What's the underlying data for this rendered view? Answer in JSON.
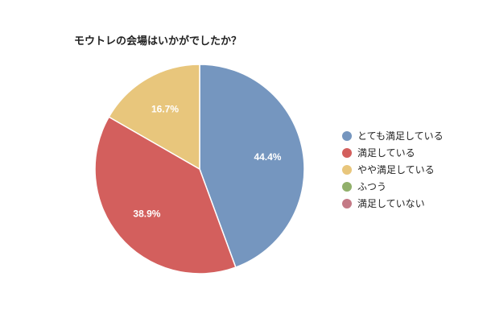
{
  "chart_data": {
    "type": "pie",
    "title": "モウトレの会場はいかがでしたか？",
    "legend_position": "right",
    "slices": [
      {
        "label": "とても満足している",
        "value": 44.4,
        "display": "44.4%",
        "color": "#7596bf"
      },
      {
        "label": "満足している",
        "value": 38.9,
        "display": "38.9%",
        "color": "#d35f5d"
      },
      {
        "label": "やや満足している",
        "value": 16.7,
        "display": "16.7%",
        "color": "#e8c67c"
      },
      {
        "label": "ふつう",
        "value": 0,
        "display": "",
        "color": "#91b06b"
      },
      {
        "label": "満足していない",
        "value": 0,
        "display": "",
        "color": "#c47a86"
      }
    ]
  }
}
